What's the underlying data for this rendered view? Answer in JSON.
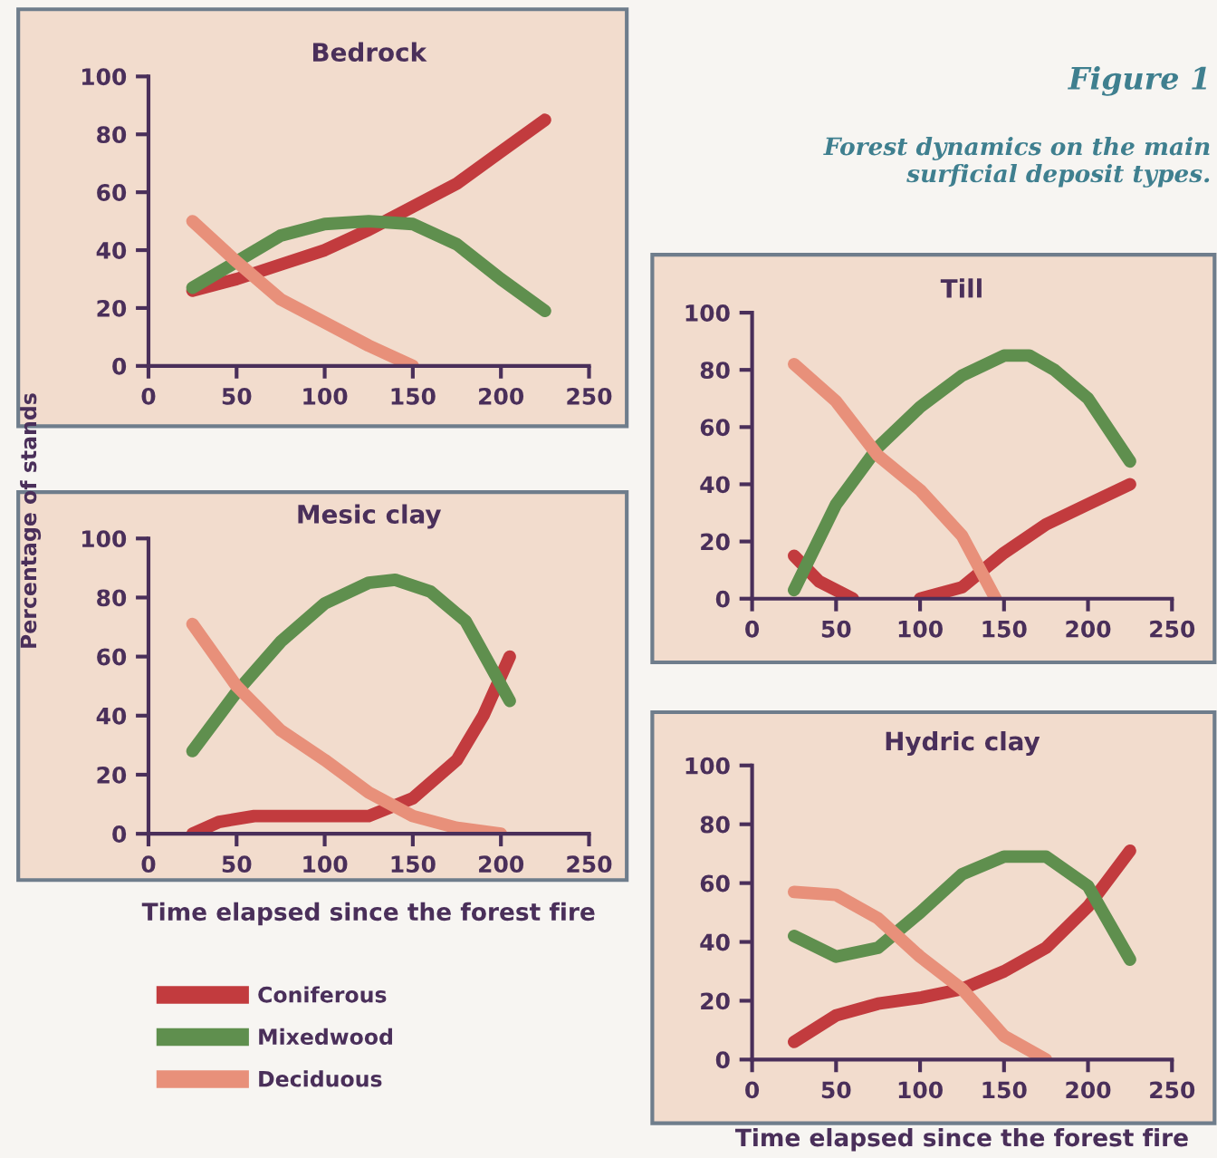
{
  "chart_data": [
    {
      "type": "line",
      "title": "Bedrock",
      "ylabel": "Percentage of stands",
      "xlim": [
        0,
        250
      ],
      "ylim": [
        0,
        100
      ],
      "xticks": [
        0,
        50,
        100,
        150,
        200,
        250
      ],
      "yticks": [
        0,
        20,
        40,
        60,
        80,
        100
      ],
      "line_style": "solid",
      "series": [
        {
          "color": "#c23b3e",
          "x": [
            25,
            50,
            75,
            100,
            125,
            150,
            175,
            200,
            225
          ],
          "values": [
            26,
            30,
            35,
            40,
            47,
            55,
            63,
            74,
            85
          ]
        },
        {
          "color": "#5f8f4e",
          "x": [
            25,
            50,
            75,
            100,
            125,
            150,
            175,
            200,
            225
          ],
          "values": [
            27,
            36,
            45,
            49,
            50,
            49,
            42,
            30,
            19
          ]
        },
        {
          "color": "#e8907a",
          "x": [
            25,
            50,
            75,
            100,
            125,
            150
          ],
          "values": [
            50,
            36,
            23,
            15,
            7,
            0
          ]
        }
      ]
    },
    {
      "type": "line",
      "title": "Mesic clay",
      "xlabel": "Time elapsed since the forest fire",
      "xlim": [
        0,
        250
      ],
      "ylim": [
        0,
        100
      ],
      "xticks": [
        0,
        50,
        100,
        150,
        200,
        250
      ],
      "yticks": [
        0,
        20,
        40,
        60,
        80,
        100
      ],
      "line_style": "solid",
      "legend": "bottom",
      "series": [
        {
          "name": "Coniferous",
          "color": "#c23b3e",
          "x": [
            25,
            40,
            60,
            100,
            125,
            150,
            175,
            190,
            205
          ],
          "values": [
            0,
            4,
            6,
            6,
            6,
            12,
            25,
            40,
            60
          ]
        },
        {
          "name": "Mixedwood",
          "color": "#5f8f4e",
          "x": [
            25,
            50,
            75,
            100,
            125,
            140,
            160,
            180,
            205
          ],
          "values": [
            28,
            48,
            65,
            78,
            85,
            86,
            82,
            72,
            45
          ]
        },
        {
          "name": "Deciduous",
          "color": "#e8907a",
          "x": [
            25,
            50,
            75,
            100,
            125,
            150,
            175,
            200
          ],
          "values": [
            71,
            50,
            35,
            25,
            14,
            6,
            2,
            0
          ]
        }
      ]
    },
    {
      "type": "line",
      "title": "Till",
      "annotations": [
        "Figure 1",
        "Forest dynamics on the main\nsurficial deposit types."
      ],
      "xlim": [
        0,
        250
      ],
      "ylim": [
        0,
        100
      ],
      "xticks": [
        0,
        50,
        100,
        150,
        200,
        250
      ],
      "yticks": [
        0,
        20,
        40,
        60,
        80,
        100
      ],
      "line_style": "solid",
      "series": [
        {
          "color": "#c23b3e",
          "x": [
            25,
            40,
            60,
            80,
            100,
            125,
            150,
            175,
            200,
            225
          ],
          "values": [
            15,
            6,
            0,
            null,
            0,
            4,
            16,
            26,
            33,
            40
          ]
        },
        {
          "color": "#5f8f4e",
          "x": [
            25,
            50,
            75,
            100,
            125,
            150,
            165,
            180,
            200,
            225
          ],
          "values": [
            3,
            33,
            53,
            67,
            78,
            85,
            85,
            80,
            70,
            48
          ]
        },
        {
          "color": "#e8907a",
          "x": [
            25,
            50,
            75,
            100,
            125,
            145
          ],
          "values": [
            82,
            69,
            50,
            38,
            22,
            0
          ]
        }
      ]
    },
    {
      "type": "line",
      "title": "Hydric clay",
      "xlabel": "Time elapsed since the forest fire",
      "xlim": [
        0,
        250
      ],
      "ylim": [
        0,
        100
      ],
      "xticks": [
        0,
        50,
        100,
        150,
        200,
        250
      ],
      "yticks": [
        0,
        20,
        40,
        60,
        80,
        100
      ],
      "line_style": "solid",
      "series": [
        {
          "color": "#c23b3e",
          "x": [
            25,
            50,
            75,
            100,
            125,
            150,
            175,
            200,
            225
          ],
          "values": [
            6,
            15,
            19,
            21,
            24,
            30,
            38,
            52,
            71
          ]
        },
        {
          "color": "#5f8f4e",
          "x": [
            25,
            50,
            75,
            100,
            125,
            150,
            175,
            200,
            225
          ],
          "values": [
            42,
            35,
            38,
            50,
            63,
            69,
            69,
            59,
            34
          ]
        },
        {
          "color": "#e8907a",
          "x": [
            25,
            50,
            75,
            100,
            125,
            150,
            175
          ],
          "values": [
            57,
            56,
            48,
            35,
            24,
            8,
            0
          ]
        }
      ]
    }
  ]
}
